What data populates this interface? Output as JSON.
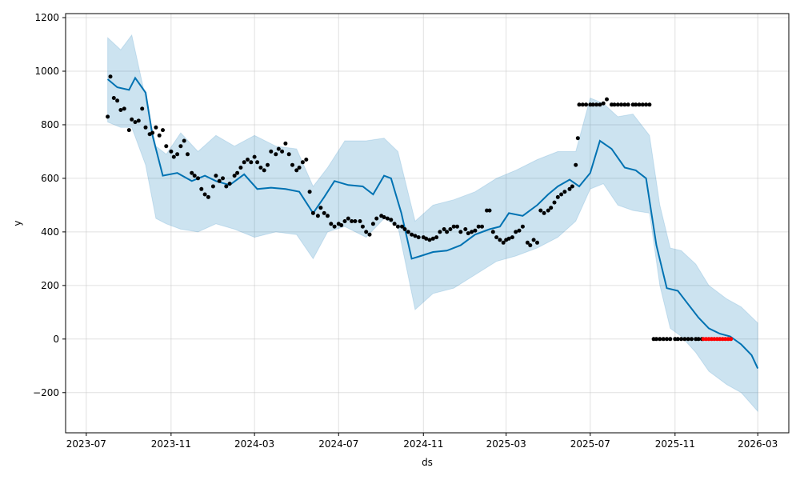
{
  "chart_data": {
    "type": "line",
    "title": "",
    "xlabel": "ds",
    "ylabel": "y",
    "x_ticks": [
      "2023-07",
      "2023-11",
      "2024-03",
      "2024-07",
      "2024-11",
      "2025-03",
      "2025-07",
      "2025-11",
      "2026-03"
    ],
    "y_ticks": [
      1200,
      1000,
      800,
      600,
      400,
      200,
      0,
      -200
    ],
    "xlim": [
      "2023-06-01",
      "2026-04-15"
    ],
    "ylim": [
      -350,
      1215
    ],
    "grid": true,
    "colors": {
      "observed": "#000000",
      "forecast": "#0072B2",
      "interval": "#0072B2",
      "holdout": "#ff0000"
    },
    "series": [
      {
        "role": "forecast",
        "x": [
          "2023-08-01",
          "2023-08-15",
          "2023-09-01",
          "2023-09-10",
          "2023-09-25",
          "2023-10-05",
          "2023-10-20",
          "2023-11-10",
          "2023-12-01",
          "2023-12-20",
          "2024-01-05",
          "2024-01-25",
          "2024-02-15",
          "2024-03-05",
          "2024-03-25",
          "2024-04-15",
          "2024-05-05",
          "2024-05-25",
          "2024-06-10",
          "2024-06-25",
          "2024-07-15",
          "2024-08-05",
          "2024-08-20",
          "2024-09-05",
          "2024-09-15",
          "2024-09-30",
          "2024-10-15",
          "2024-10-28",
          "2024-11-15",
          "2024-12-05",
          "2024-12-25",
          "2025-01-15",
          "2025-02-05",
          "2025-02-20",
          "2025-03-05",
          "2025-03-25",
          "2025-04-15",
          "2025-05-01",
          "2025-05-15",
          "2025-06-01",
          "2025-06-15",
          "2025-07-01",
          "2025-07-15",
          "2025-08-01",
          "2025-08-20",
          "2025-09-05",
          "2025-09-20",
          "2025-10-05",
          "2025-10-20",
          "2025-11-05",
          "2025-11-20",
          "2025-12-05",
          "2025-12-20",
          "2026-01-05",
          "2026-01-20",
          "2026-02-05",
          "2026-02-20",
          "2026-03-01"
        ],
        "y": [
          970,
          940,
          930,
          975,
          920,
          760,
          610,
          620,
          590,
          610,
          590,
          575,
          615,
          560,
          565,
          560,
          550,
          470,
          530,
          590,
          575,
          570,
          540,
          610,
          600,
          470,
          300,
          310,
          325,
          330,
          350,
          390,
          410,
          420,
          470,
          460,
          500,
          540,
          570,
          595,
          570,
          620,
          740,
          710,
          640,
          630,
          600,
          350,
          190,
          180,
          130,
          80,
          40,
          20,
          10,
          -20,
          -60,
          -110
        ]
      },
      {
        "role": "interval_upper",
        "x": [
          "2023-08-01",
          "2023-08-20",
          "2023-09-05",
          "2023-09-25",
          "2023-10-10",
          "2023-10-25",
          "2023-11-15",
          "2023-12-10",
          "2024-01-05",
          "2024-02-01",
          "2024-03-01",
          "2024-04-01",
          "2024-05-01",
          "2024-05-25",
          "2024-06-15",
          "2024-07-10",
          "2024-08-10",
          "2024-09-05",
          "2024-09-25",
          "2024-10-20",
          "2024-11-15",
          "2024-12-15",
          "2025-01-15",
          "2025-02-15",
          "2025-03-15",
          "2025-04-15",
          "2025-05-15",
          "2025-06-10",
          "2025-07-01",
          "2025-07-20",
          "2025-08-10",
          "2025-09-01",
          "2025-09-25",
          "2025-10-10",
          "2025-10-25",
          "2025-11-10",
          "2025-12-01",
          "2025-12-20",
          "2026-01-15",
          "2026-02-05",
          "2026-03-01"
        ],
        "y": [
          1125,
          1080,
          1135,
          900,
          720,
          690,
          770,
          700,
          760,
          720,
          760,
          720,
          710,
          570,
          640,
          740,
          740,
          750,
          700,
          440,
          500,
          520,
          550,
          600,
          630,
          670,
          700,
          700,
          900,
          880,
          830,
          840,
          760,
          500,
          340,
          330,
          280,
          200,
          150,
          120,
          60
        ]
      },
      {
        "role": "interval_lower",
        "x": [
          "2023-08-01",
          "2023-08-20",
          "2023-09-05",
          "2023-09-25",
          "2023-10-10",
          "2023-10-25",
          "2023-11-15",
          "2023-12-10",
          "2024-01-05",
          "2024-02-01",
          "2024-03-01",
          "2024-04-01",
          "2024-05-01",
          "2024-05-25",
          "2024-06-15",
          "2024-07-10",
          "2024-08-10",
          "2024-09-05",
          "2024-09-25",
          "2024-10-20",
          "2024-11-15",
          "2024-12-15",
          "2025-01-15",
          "2025-02-15",
          "2025-03-15",
          "2025-04-15",
          "2025-05-15",
          "2025-06-10",
          "2025-07-01",
          "2025-07-20",
          "2025-08-10",
          "2025-09-01",
          "2025-09-25",
          "2025-10-10",
          "2025-10-25",
          "2025-11-10",
          "2025-12-01",
          "2025-12-20",
          "2026-01-15",
          "2026-02-05",
          "2026-03-01"
        ],
        "y": [
          810,
          790,
          790,
          650,
          450,
          430,
          410,
          400,
          430,
          410,
          380,
          400,
          390,
          300,
          400,
          420,
          380,
          450,
          420,
          110,
          170,
          190,
          240,
          290,
          310,
          340,
          380,
          440,
          560,
          580,
          500,
          480,
          470,
          200,
          40,
          10,
          -50,
          -120,
          -170,
          -200,
          -270
        ]
      },
      {
        "role": "observed",
        "x": [
          "2023-08-01",
          "2023-08-05",
          "2023-08-10",
          "2023-08-15",
          "2023-08-20",
          "2023-08-25",
          "2023-09-01",
          "2023-09-05",
          "2023-09-10",
          "2023-09-15",
          "2023-09-20",
          "2023-09-25",
          "2023-10-01",
          "2023-10-05",
          "2023-10-10",
          "2023-10-15",
          "2023-10-20",
          "2023-10-25",
          "2023-11-01",
          "2023-11-05",
          "2023-11-10",
          "2023-11-15",
          "2023-11-20",
          "2023-11-25",
          "2023-12-01",
          "2023-12-05",
          "2023-12-10",
          "2023-12-15",
          "2023-12-20",
          "2023-12-25",
          "2024-01-01",
          "2024-01-05",
          "2024-01-10",
          "2024-01-15",
          "2024-01-20",
          "2024-01-25",
          "2024-02-01",
          "2024-02-05",
          "2024-02-10",
          "2024-02-15",
          "2024-02-20",
          "2024-02-25",
          "2024-03-01",
          "2024-03-05",
          "2024-03-10",
          "2024-03-15",
          "2024-03-20",
          "2024-03-25",
          "2024-04-01",
          "2024-04-05",
          "2024-04-10",
          "2024-04-15",
          "2024-04-20",
          "2024-04-25",
          "2024-05-01",
          "2024-05-05",
          "2024-05-10",
          "2024-05-15",
          "2024-05-20",
          "2024-05-25",
          "2024-06-01",
          "2024-06-05",
          "2024-06-10",
          "2024-06-15",
          "2024-06-20",
          "2024-06-25",
          "2024-07-01",
          "2024-07-05",
          "2024-07-10",
          "2024-07-15",
          "2024-07-20",
          "2024-07-25",
          "2024-08-01",
          "2024-08-05",
          "2024-08-10",
          "2024-08-15",
          "2024-08-20",
          "2024-08-25",
          "2024-09-01",
          "2024-09-05",
          "2024-09-10",
          "2024-09-15",
          "2024-09-20",
          "2024-09-25",
          "2024-10-01",
          "2024-10-05",
          "2024-10-10",
          "2024-10-15",
          "2024-10-20",
          "2024-10-25",
          "2024-11-01",
          "2024-11-05",
          "2024-11-10",
          "2024-11-15",
          "2024-11-20",
          "2024-11-25",
          "2024-12-01",
          "2024-12-05",
          "2024-12-10",
          "2024-12-15",
          "2024-12-20",
          "2024-12-25",
          "2025-01-01",
          "2025-01-05",
          "2025-01-10",
          "2025-01-15",
          "2025-01-20",
          "2025-01-25",
          "2025-02-01",
          "2025-02-05",
          "2025-02-10",
          "2025-02-15",
          "2025-02-20",
          "2025-02-25",
          "2025-03-01",
          "2025-03-05",
          "2025-03-10",
          "2025-03-15",
          "2025-03-20",
          "2025-03-25",
          "2025-04-01",
          "2025-04-05",
          "2025-04-10",
          "2025-04-15",
          "2025-04-20",
          "2025-04-25",
          "2025-05-01",
          "2025-05-05",
          "2025-05-10",
          "2025-05-15",
          "2025-05-20",
          "2025-05-25",
          "2025-06-01",
          "2025-06-05",
          "2025-06-10",
          "2025-06-13",
          "2025-06-15",
          "2025-06-20",
          "2025-06-25",
          "2025-07-01",
          "2025-07-05",
          "2025-07-10",
          "2025-07-15",
          "2025-07-20",
          "2025-07-25",
          "2025-08-01",
          "2025-08-05",
          "2025-08-10",
          "2025-08-15",
          "2025-08-20",
          "2025-08-25",
          "2025-09-01",
          "2025-09-05",
          "2025-09-10",
          "2025-09-15",
          "2025-09-20",
          "2025-09-25",
          "2025-10-01",
          "2025-10-05",
          "2025-10-10",
          "2025-10-15",
          "2025-10-20",
          "2025-10-25",
          "2025-11-01",
          "2025-11-05",
          "2025-11-10",
          "2025-11-15",
          "2025-11-20",
          "2025-11-25",
          "2025-12-01",
          "2025-12-05",
          "2025-12-10"
        ],
        "y": [
          830,
          980,
          900,
          890,
          855,
          860,
          780,
          820,
          810,
          815,
          860,
          790,
          765,
          770,
          790,
          760,
          780,
          720,
          700,
          680,
          690,
          720,
          740,
          690,
          620,
          610,
          600,
          560,
          540,
          530,
          570,
          610,
          590,
          600,
          570,
          580,
          610,
          620,
          640,
          660,
          670,
          660,
          680,
          660,
          640,
          630,
          650,
          700,
          690,
          710,
          700,
          730,
          690,
          650,
          630,
          640,
          660,
          670,
          550,
          470,
          460,
          490,
          470,
          460,
          430,
          420,
          430,
          425,
          440,
          450,
          440,
          440,
          440,
          420,
          400,
          390,
          430,
          450,
          460,
          455,
          450,
          445,
          430,
          420,
          420,
          410,
          400,
          390,
          385,
          380,
          380,
          375,
          370,
          375,
          380,
          400,
          410,
          400,
          410,
          420,
          420,
          400,
          410,
          395,
          400,
          405,
          420,
          420,
          480,
          480,
          400,
          380,
          370,
          360,
          370,
          375,
          380,
          400,
          405,
          420,
          360,
          350,
          370,
          360,
          480,
          470,
          480,
          490,
          510,
          530,
          540,
          550,
          560,
          570,
          650,
          750,
          875,
          875,
          875,
          875,
          875,
          875,
          875,
          880,
          895,
          875,
          875,
          875,
          875,
          875,
          875,
          875,
          875,
          875,
          875,
          875,
          875,
          0,
          0,
          0,
          0,
          0,
          0,
          0,
          0,
          0,
          0,
          0,
          0,
          0,
          0,
          0
        ]
      },
      {
        "role": "holdout",
        "x": [
          "2025-12-12",
          "2025-12-16",
          "2025-12-20",
          "2025-12-24",
          "2025-12-28",
          "2026-01-01",
          "2026-01-05",
          "2026-01-09",
          "2026-01-13",
          "2026-01-17",
          "2026-01-21"
        ],
        "y": [
          0,
          0,
          0,
          0,
          0,
          0,
          0,
          0,
          0,
          0,
          0
        ]
      }
    ]
  }
}
